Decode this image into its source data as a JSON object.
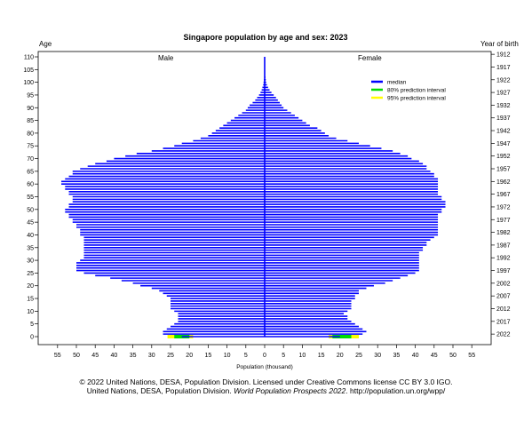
{
  "chart_data": {
    "type": "population-pyramid",
    "title": "Singapore population by age and sex: 2023",
    "left_axis_label": "Age",
    "right_axis_label": "Year of birth",
    "xlabel": "Population (thousand)",
    "male_label": "Male",
    "female_label": "Female",
    "xlim": [
      -60,
      60
    ],
    "ylim": [
      0,
      110
    ],
    "x_ticks": [
      -55,
      -50,
      -45,
      -40,
      -35,
      -30,
      -25,
      -20,
      -15,
      -10,
      -5,
      0,
      5,
      10,
      15,
      20,
      25,
      30,
      35,
      40,
      45,
      50,
      55
    ],
    "x_tick_labels": [
      "55",
      "50",
      "45",
      "40",
      "35",
      "30",
      "25",
      "20",
      "15",
      "10",
      "5",
      "0",
      "5",
      "10",
      "15",
      "20",
      "25",
      "30",
      "35",
      "40",
      "45",
      "50",
      "55"
    ],
    "age_ticks": [
      0,
      5,
      10,
      15,
      20,
      25,
      30,
      35,
      40,
      45,
      50,
      55,
      60,
      65,
      70,
      75,
      80,
      85,
      90,
      95,
      100,
      105,
      110
    ],
    "birth_year_ticks": [
      {
        "age": 1,
        "year": "2022"
      },
      {
        "age": 6,
        "year": "2017"
      },
      {
        "age": 11,
        "year": "2012"
      },
      {
        "age": 16,
        "year": "2007"
      },
      {
        "age": 21,
        "year": "2002"
      },
      {
        "age": 26,
        "year": "1997"
      },
      {
        "age": 31,
        "year": "1992"
      },
      {
        "age": 36,
        "year": "1987"
      },
      {
        "age": 41,
        "year": "1982"
      },
      {
        "age": 46,
        "year": "1977"
      },
      {
        "age": 51,
        "year": "1972"
      },
      {
        "age": 56,
        "year": "1967"
      },
      {
        "age": 61,
        "year": "1962"
      },
      {
        "age": 66,
        "year": "1957"
      },
      {
        "age": 71,
        "year": "1952"
      },
      {
        "age": 76,
        "year": "1947"
      },
      {
        "age": 81,
        "year": "1942"
      },
      {
        "age": 86,
        "year": "1937"
      },
      {
        "age": 91,
        "year": "1932"
      },
      {
        "age": 96,
        "year": "1927"
      },
      {
        "age": 101,
        "year": "1922"
      },
      {
        "age": 106,
        "year": "1917"
      },
      {
        "age": 111,
        "year": "1912"
      }
    ],
    "legend": {
      "placement": "top-right",
      "entries": [
        {
          "label": "median",
          "color": "#0000ff"
        },
        {
          "label": "80% prediction interval",
          "color": "#00dd00"
        },
        {
          "label": "95% prediction interval",
          "color": "#ffff00"
        }
      ]
    },
    "series": [
      {
        "name": "Male",
        "color": "#0000ff",
        "values": [
          22,
          27,
          27,
          26,
          25,
          24,
          23,
          23,
          23,
          23,
          24,
          25,
          25,
          25,
          25,
          25,
          26,
          27,
          28,
          30,
          33,
          35,
          38,
          41,
          45,
          48,
          50,
          50,
          50,
          50,
          49,
          48,
          48,
          48,
          48,
          48,
          48,
          48,
          48,
          48,
          49,
          49,
          49,
          50,
          50,
          51,
          51,
          52,
          52,
          53,
          53,
          52,
          52,
          51,
          51,
          51,
          52,
          52,
          53,
          53,
          54,
          54,
          53,
          52,
          51,
          51,
          49,
          47,
          45,
          42,
          40,
          37,
          34,
          30,
          27,
          24,
          22,
          19,
          17,
          15,
          14,
          13,
          12,
          11,
          10,
          9,
          8,
          7,
          6,
          5,
          4.5,
          4,
          3.2,
          2.5,
          2,
          1.5,
          1.1,
          0.8,
          0.6,
          0.4,
          0.3,
          0.2,
          0.1,
          0.1,
          0.05,
          0.05,
          0.02,
          0.02,
          0.01,
          0.01,
          0.01
        ]
      },
      {
        "name": "Female",
        "color": "#0000ff",
        "values": [
          20,
          26,
          27,
          26,
          25,
          24,
          23,
          22,
          22,
          21,
          22,
          23,
          23,
          23,
          23,
          24,
          24,
          25,
          25,
          27,
          29,
          32,
          34,
          36,
          38,
          40,
          41,
          41,
          41,
          41,
          41,
          41,
          41,
          41,
          42,
          42,
          43,
          43,
          44,
          45,
          46,
          46,
          46,
          46,
          46,
          46,
          46,
          46,
          46,
          47,
          47,
          48,
          48,
          48,
          47,
          47,
          46,
          46,
          46,
          46,
          46,
          46,
          46,
          45,
          45,
          44,
          43,
          43,
          42,
          41,
          39,
          38,
          36,
          34,
          31,
          28,
          25,
          22,
          19,
          17,
          16,
          15,
          14,
          12,
          11,
          10,
          9,
          8,
          7,
          6,
          5,
          4.5,
          4,
          3.5,
          3,
          2.4,
          1.8,
          1.3,
          0.9,
          0.6,
          0.4,
          0.3,
          0.2,
          0.1,
          0.05,
          0.05,
          0.02,
          0.02,
          0.01,
          0.01,
          0.01
        ]
      }
    ],
    "age0_intervals": {
      "male": {
        "p95": [
          19,
          25.8
        ],
        "p80": [
          20,
          24
        ]
      },
      "female": {
        "p95": [
          17,
          25
        ],
        "p80": [
          18,
          23
        ]
      }
    }
  },
  "footer": {
    "line1": "© 2022 United Nations, DESA, Population Division. Licensed under Creative Commons license CC BY 3.0 IGO.",
    "line2_pre": "United Nations, DESA, Population Division. ",
    "line2_italic": "World Population Prospects 2022",
    "line2_post": ". http://population.un.org/wpp/"
  }
}
